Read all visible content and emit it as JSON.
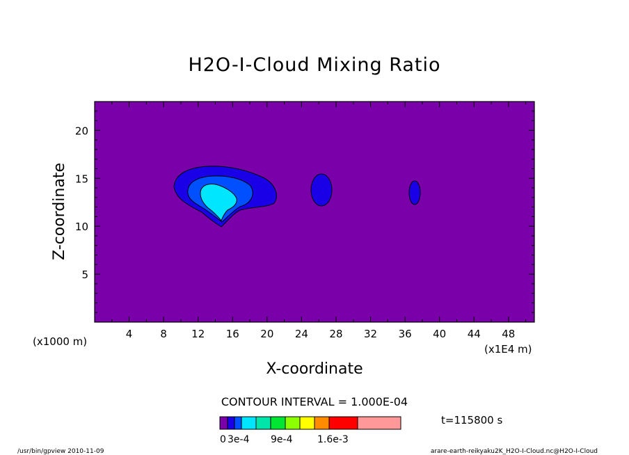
{
  "chart_data": {
    "type": "contour",
    "title": "H2O-I-Cloud Mixing Ratio",
    "xlabel": "X-coordinate",
    "ylabel": "Z-coordinate",
    "x_unit_label": "(x1E4 m)",
    "y_unit_label": "(x1000 m)",
    "xlim": [
      0,
      51
    ],
    "ylim": [
      0,
      23
    ],
    "x_ticks": [
      4,
      8,
      12,
      16,
      20,
      24,
      28,
      32,
      36,
      40,
      44,
      48
    ],
    "x_tick_labels": [
      "4",
      "8",
      "12",
      "16",
      "20",
      "24",
      "28",
      "32",
      "36",
      "40",
      "44",
      "48"
    ],
    "y_ticks": [
      5,
      10,
      15,
      20
    ],
    "y_tick_labels": [
      "5",
      "10",
      "15",
      "20"
    ],
    "contour_interval_text": "CONTOUR INTERVAL = 1.000E-04",
    "time_text": "t=115800 s",
    "footer_left": "/usr/bin/gpview   2010-11-09",
    "footer_right": "arare-earth-reikyaku2K_H2O-I-Cloud.nc@H2O-I-Cloud",
    "background_color": "#7a00aa",
    "colorbar": {
      "colors": [
        "#7a00aa",
        "#1a00e6",
        "#0050ff",
        "#00e6ff",
        "#00e6aa",
        "#00e632",
        "#8cff00",
        "#ffff00",
        "#ff8c00",
        "#ff0000",
        "#ff9999"
      ],
      "labels": [
        "0",
        "3e-4",
        "9e-4",
        "1.6e-3"
      ]
    },
    "contour_regions": [
      {
        "level": "1e-4",
        "color": "#1a00e6",
        "center_x": 16,
        "center_z": 13.5
      },
      {
        "level": "2e-4",
        "color": "#0050ff",
        "center_x": 15,
        "center_z": 13
      },
      {
        "level": "3e-4",
        "color": "#00e6ff",
        "center_x": 14.8,
        "center_z": 12.8
      },
      {
        "level": "1e-4",
        "color": "#1a00e6",
        "center_x": 26.5,
        "center_z": 13.5
      },
      {
        "level": "1e-4",
        "color": "#1a00e6",
        "center_x": 37.2,
        "center_z": 13.5
      }
    ]
  }
}
